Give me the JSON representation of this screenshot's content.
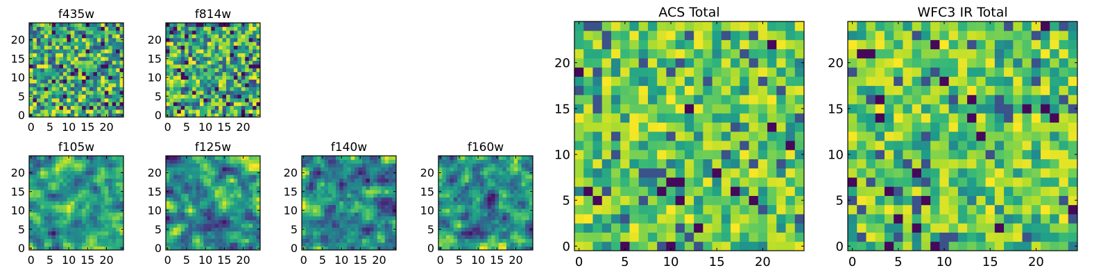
{
  "figure": {
    "colormap": "viridis",
    "background": "#ffffff",
    "frame_color": "#000000"
  },
  "chart_data": [
    {
      "type": "heatmap",
      "title": "f435w",
      "grid": [
        25,
        25
      ],
      "xlim": [
        0,
        25
      ],
      "ylim": [
        0,
        25
      ],
      "xticks": [
        "0",
        "5",
        "10",
        "15",
        "20"
      ],
      "yticks": [
        "0",
        "5",
        "10",
        "15",
        "20"
      ],
      "xlabel": "",
      "ylabel": "",
      "texture": "pixel-noise"
    },
    {
      "type": "heatmap",
      "title": "f814w",
      "grid": [
        25,
        25
      ],
      "xlim": [
        0,
        25
      ],
      "ylim": [
        0,
        25
      ],
      "xticks": [
        "0",
        "5",
        "10",
        "15",
        "20"
      ],
      "yticks": [
        "0",
        "5",
        "10",
        "15",
        "20"
      ],
      "xlabel": "",
      "ylabel": "",
      "texture": "pixel-noise"
    },
    {
      "type": "heatmap",
      "title": "f105w",
      "grid": [
        25,
        25
      ],
      "xlim": [
        0,
        25
      ],
      "ylim": [
        0,
        25
      ],
      "xticks": [
        "0",
        "5",
        "10",
        "15",
        "20"
      ],
      "yticks": [
        "0",
        "5",
        "10",
        "15",
        "20"
      ],
      "xlabel": "",
      "ylabel": "",
      "texture": "smooth-noise"
    },
    {
      "type": "heatmap",
      "title": "f125w",
      "grid": [
        25,
        25
      ],
      "xlim": [
        0,
        25
      ],
      "ylim": [
        0,
        25
      ],
      "xticks": [
        "0",
        "5",
        "10",
        "15",
        "20"
      ],
      "yticks": [
        "0",
        "5",
        "10",
        "15",
        "20"
      ],
      "xlabel": "",
      "ylabel": "",
      "texture": "smooth-noise"
    },
    {
      "type": "heatmap",
      "title": "f140w",
      "grid": [
        25,
        25
      ],
      "xlim": [
        0,
        25
      ],
      "ylim": [
        0,
        25
      ],
      "xticks": [
        "0",
        "5",
        "10",
        "15",
        "20"
      ],
      "yticks": [
        "0",
        "5",
        "10",
        "15",
        "20"
      ],
      "xlabel": "",
      "ylabel": "",
      "texture": "smooth-noise"
    },
    {
      "type": "heatmap",
      "title": "f160w",
      "grid": [
        25,
        25
      ],
      "xlim": [
        0,
        25
      ],
      "ylim": [
        0,
        25
      ],
      "xticks": [
        "0",
        "5",
        "10",
        "15",
        "20"
      ],
      "yticks": [
        "0",
        "5",
        "10",
        "15",
        "20"
      ],
      "xlabel": "",
      "ylabel": "",
      "texture": "smooth-noise"
    },
    {
      "type": "heatmap",
      "title": "ACS Total",
      "grid": [
        25,
        25
      ],
      "xlim": [
        0,
        25
      ],
      "ylim": [
        0,
        25
      ],
      "xticks": [
        "0",
        "5",
        "10",
        "15",
        "20"
      ],
      "yticks": [
        "0",
        "5",
        "10",
        "15",
        "20"
      ],
      "xlabel": "",
      "ylabel": "",
      "texture": "pixel-noise-bright"
    },
    {
      "type": "heatmap",
      "title": "WFC3 IR Total",
      "grid": [
        25,
        25
      ],
      "xlim": [
        0,
        25
      ],
      "ylim": [
        0,
        25
      ],
      "xticks": [
        "0",
        "5",
        "10",
        "15",
        "20"
      ],
      "yticks": [
        "0",
        "5",
        "10",
        "15",
        "20"
      ],
      "xlabel": "",
      "ylabel": "",
      "texture": "pixel-noise-bright"
    }
  ]
}
